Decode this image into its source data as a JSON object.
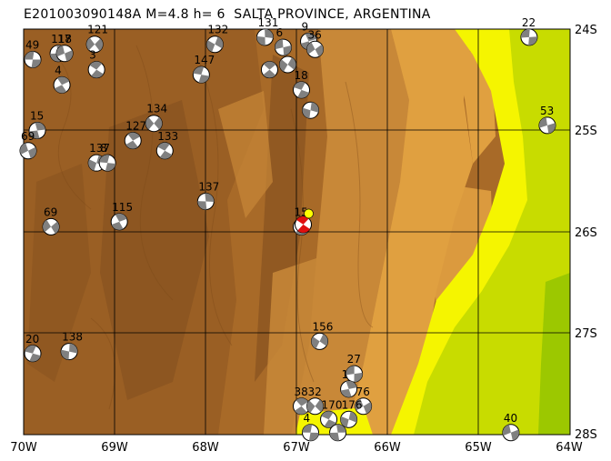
{
  "title": "E201003090148A  M=4.8  h= 6  SALTA PROVINCE, ARGENTINA",
  "x_ticks": [
    "70W",
    "69W",
    "68W",
    "67W",
    "66W",
    "65W",
    "64W"
  ],
  "y_ticks": [
    "24S",
    "25S",
    "26S",
    "27S",
    "28S"
  ],
  "map": {
    "lon_range": [
      -70,
      -64
    ],
    "lat_range": [
      -28,
      -24
    ],
    "grid": true,
    "colors": {
      "lowland_yellow": "#f5f500",
      "plain_green": "#c8dc00",
      "dark_green": "#9cc800",
      "foothill": "#e0a040",
      "mid": "#c88838",
      "high": "#a86a28",
      "peak": "#8a5420"
    }
  },
  "mechanisms": [
    {
      "label": "49",
      "lon": -69.9,
      "lat": -24.3
    },
    {
      "label": "118",
      "lon": -69.62,
      "lat": -24.24
    },
    {
      "label": "17",
      "lon": -69.55,
      "lat": -24.24
    },
    {
      "label": "4",
      "lon": -69.58,
      "lat": -24.55
    },
    {
      "label": "121",
      "lon": -69.22,
      "lat": -24.15
    },
    {
      "label": "3",
      "lon": -69.2,
      "lat": -24.4
    },
    {
      "label": "132",
      "lon": -67.9,
      "lat": -24.15
    },
    {
      "label": "147",
      "lon": -68.05,
      "lat": -24.45
    },
    {
      "label": "131",
      "lon": -67.35,
      "lat": -24.08
    },
    {
      "label": "6",
      "lon": -67.15,
      "lat": -24.18
    },
    {
      "label": "9",
      "lon": -66.87,
      "lat": -24.12
    },
    {
      "label": "36",
      "lon": -66.8,
      "lat": -24.2
    },
    {
      "label": "",
      "lon": -67.3,
      "lat": -24.4
    },
    {
      "label": "",
      "lon": -67.1,
      "lat": -24.35
    },
    {
      "label": "18",
      "lon": -66.95,
      "lat": -24.6
    },
    {
      "label": "",
      "lon": -66.85,
      "lat": -24.8
    },
    {
      "label": "22",
      "lon": -64.45,
      "lat": -24.08
    },
    {
      "label": "15",
      "lon": -69.85,
      "lat": -25.0
    },
    {
      "label": "69",
      "lon": -69.95,
      "lat": -25.2
    },
    {
      "label": "127",
      "lon": -68.8,
      "lat": -25.1
    },
    {
      "label": "134",
      "lon": -68.57,
      "lat": -24.93
    },
    {
      "label": "133",
      "lon": -68.45,
      "lat": -25.2
    },
    {
      "label": "137",
      "lon": -69.2,
      "lat": -25.32
    },
    {
      "label": "8",
      "lon": -69.08,
      "lat": -25.32
    },
    {
      "label": "137",
      "lon": -68.0,
      "lat": -25.7
    },
    {
      "label": "53",
      "lon": -64.25,
      "lat": -24.95
    },
    {
      "label": "115",
      "lon": -68.95,
      "lat": -25.9
    },
    {
      "label": "69",
      "lon": -69.7,
      "lat": -25.95
    },
    {
      "label": "15",
      "lon": -66.95,
      "lat": -25.95
    },
    {
      "label": "156",
      "lon": -66.75,
      "lat": -27.08
    },
    {
      "label": "20",
      "lon": -69.9,
      "lat": -27.2
    },
    {
      "label": "138",
      "lon": -69.5,
      "lat": -27.18
    },
    {
      "label": "27",
      "lon": -66.37,
      "lat": -27.4
    },
    {
      "label": "1",
      "lon": -66.43,
      "lat": -27.55
    },
    {
      "label": "76",
      "lon": -66.27,
      "lat": -27.72
    },
    {
      "label": "38",
      "lon": -66.95,
      "lat": -27.72
    },
    {
      "label": "32",
      "lon": -66.8,
      "lat": -27.72
    },
    {
      "label": "170",
      "lon": -66.65,
      "lat": -27.85
    },
    {
      "label": "176",
      "lon": -66.43,
      "lat": -27.85
    },
    {
      "label": "4",
      "lon": -66.85,
      "lat": -27.98
    },
    {
      "label": "",
      "lon": -66.55,
      "lat": -27.98
    },
    {
      "label": "40",
      "lon": -64.65,
      "lat": -27.98
    }
  ],
  "event_marker": {
    "lon": -66.87,
    "lat": -25.82,
    "color": "#ffff00"
  }
}
